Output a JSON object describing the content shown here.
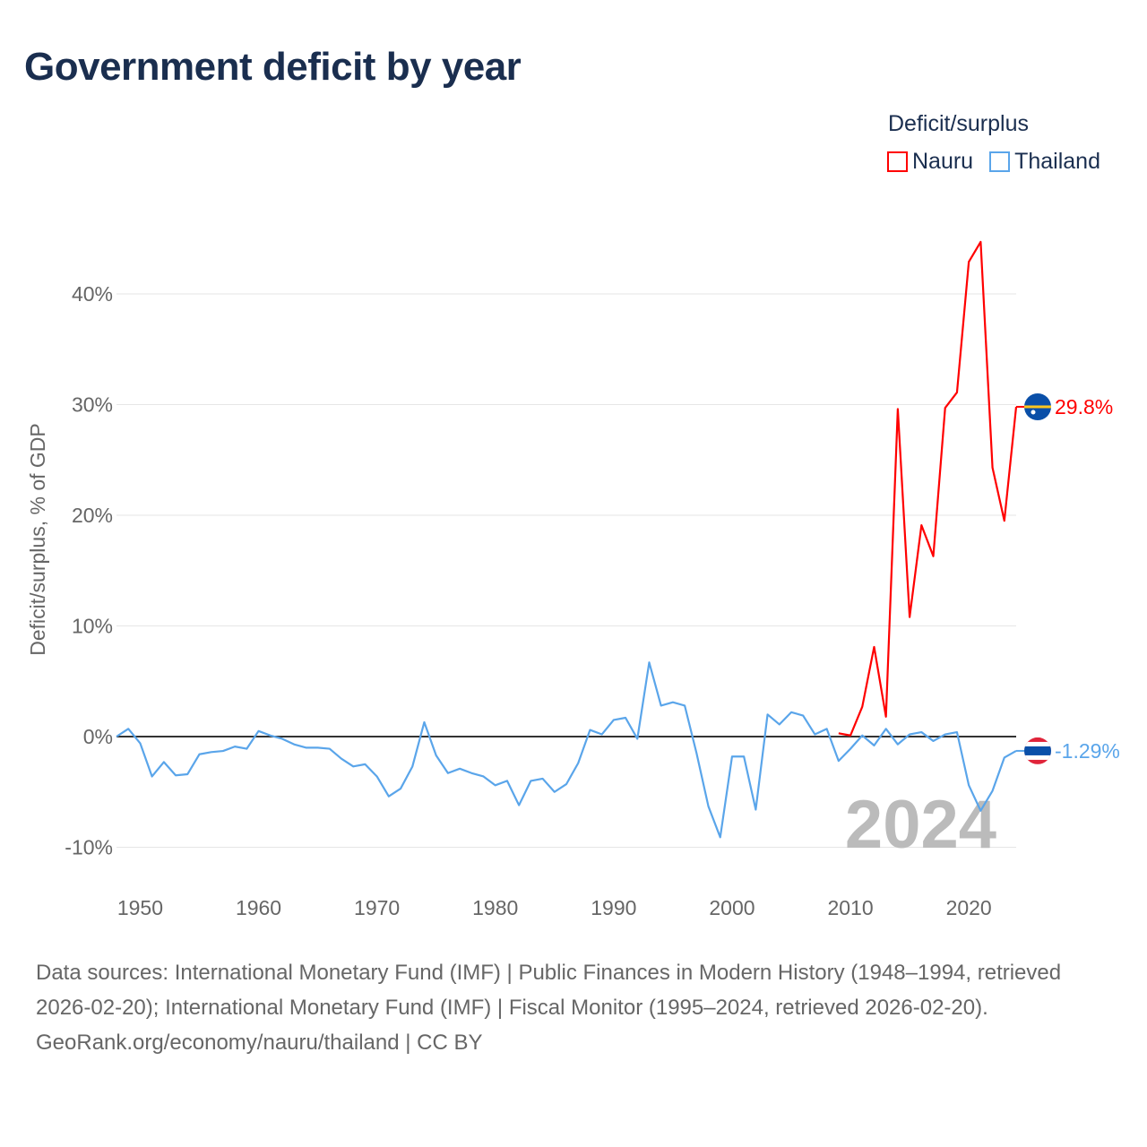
{
  "title": "Government deficit by year",
  "legend": {
    "title": "Deficit/surplus",
    "items": [
      {
        "label": "Nauru",
        "color": "#ff0000"
      },
      {
        "label": "Thailand",
        "color": "#5aa5ea"
      }
    ]
  },
  "year_watermark": "2024",
  "footer": {
    "sources": "Data sources: International Monetary Fund (IMF) | Public Finances in Modern History (1948–1994, retrieved 2026-02-20); International Monetary Fund (IMF) | Fiscal Monitor (1995–2024, retrieved 2026-02-20).",
    "credit": "GeoRank.org/economy/nauru/thailand | CC BY"
  },
  "chart_data": {
    "type": "line",
    "title": "Government deficit by year",
    "xlabel": "",
    "ylabel": "Deficit/surplus, % of GDP",
    "xlim": [
      1948,
      2024
    ],
    "ylim": [
      -12,
      45
    ],
    "x_ticks": [
      1950,
      1960,
      1970,
      1980,
      1990,
      2000,
      2010,
      2020
    ],
    "x_tick_labels": [
      "1950",
      "1960",
      "1970",
      "1980",
      "1990",
      "2000",
      "2010",
      "2020"
    ],
    "y_ticks": [
      -10,
      0,
      10,
      20,
      30,
      40
    ],
    "y_tick_labels": [
      "-10%",
      "0%",
      "10%",
      "20%",
      "30%",
      "40%"
    ],
    "grid": true,
    "legend_position": "top-right",
    "series": [
      {
        "name": "Nauru",
        "color": "#ff0000",
        "end_label": "29.8%",
        "x": [
          2009,
          2010,
          2011,
          2012,
          2013,
          2014,
          2015,
          2016,
          2017,
          2018,
          2019,
          2020,
          2021,
          2022,
          2023,
          2024
        ],
        "values": [
          0.3,
          0.1,
          2.7,
          8.1,
          1.8,
          29.6,
          10.8,
          19.1,
          16.3,
          29.7,
          31.1,
          42.9,
          44.7,
          24.3,
          19.5,
          29.8
        ]
      },
      {
        "name": "Thailand",
        "color": "#5aa5ea",
        "end_label": "-1.29%",
        "x": [
          1948,
          1949,
          1950,
          1951,
          1952,
          1953,
          1954,
          1955,
          1956,
          1957,
          1958,
          1959,
          1960,
          1961,
          1962,
          1963,
          1964,
          1965,
          1966,
          1967,
          1968,
          1969,
          1970,
          1971,
          1972,
          1973,
          1974,
          1975,
          1976,
          1977,
          1978,
          1979,
          1980,
          1981,
          1982,
          1983,
          1984,
          1985,
          1986,
          1987,
          1988,
          1989,
          1990,
          1991,
          1992,
          1993,
          1994,
          1995,
          1996,
          1997,
          1998,
          1999,
          2000,
          2001,
          2002,
          2003,
          2004,
          2005,
          2006,
          2007,
          2008,
          2009,
          2010,
          2011,
          2012,
          2013,
          2014,
          2015,
          2016,
          2017,
          2018,
          2019,
          2020,
          2021,
          2022,
          2023,
          2024
        ],
        "values": [
          0,
          0.7,
          -0.6,
          -3.6,
          -2.3,
          -3.5,
          -3.4,
          -1.6,
          -1.4,
          -1.3,
          -0.9,
          -1.1,
          0.5,
          0.1,
          -0.2,
          -0.7,
          -1.0,
          -1.0,
          -1.1,
          -2.0,
          -2.7,
          -2.5,
          -3.6,
          -5.4,
          -4.7,
          -2.7,
          1.3,
          -1.7,
          -3.3,
          -2.9,
          -3.3,
          -3.6,
          -4.4,
          -4.0,
          -6.2,
          -4.0,
          -3.8,
          -5.0,
          -4.3,
          -2.4,
          0.6,
          0.2,
          1.5,
          1.7,
          -0.2,
          6.7,
          2.8,
          3.1,
          2.8,
          -1.5,
          -6.3,
          -9.1,
          -1.8,
          -1.8,
          -6.6,
          2.0,
          1.1,
          2.2,
          1.9,
          0.2,
          0.7,
          -2.2,
          -1.1,
          0.1,
          -0.8,
          0.7,
          -0.7,
          0.2,
          0.4,
          -0.4,
          0.2,
          0.4,
          -4.4,
          -6.7,
          -4.9,
          -1.9,
          -1.29
        ]
      }
    ]
  }
}
